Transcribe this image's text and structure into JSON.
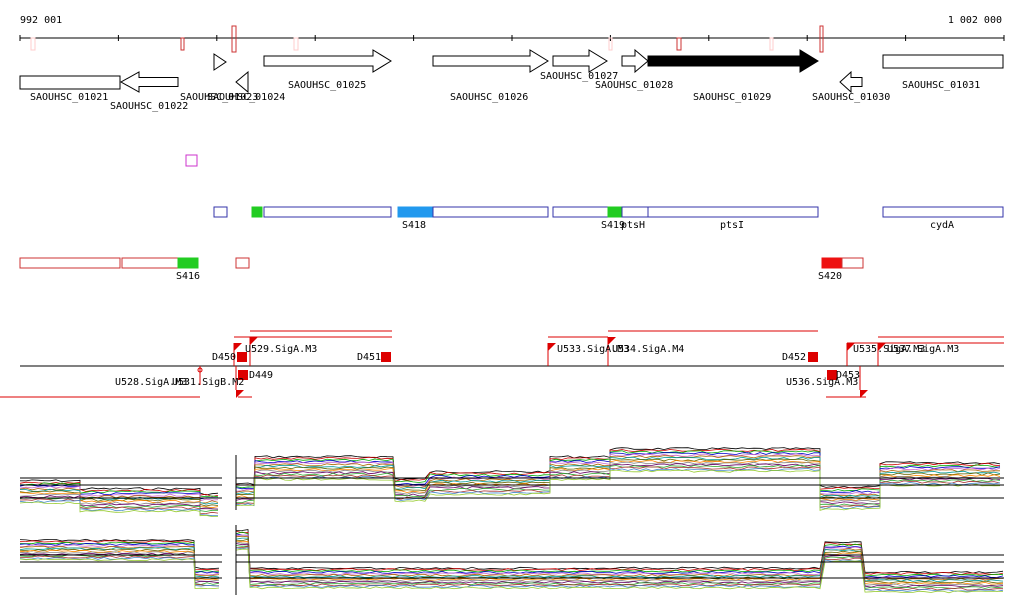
{
  "ruler": {
    "start": "992 001",
    "end": "1 002 000"
  },
  "genes": [
    "SAOUHSC_01021",
    "SAOUHSC_01022",
    "SAOUHSC_01023",
    "SAOUHSC_01024",
    "SAOUHSC_01025",
    "SAOUHSC_01026",
    "SAOUHSC_01027",
    "SAOUHSC_01028",
    "SAOUHSC_01029",
    "SAOUHSC_01030",
    "SAOUHSC_01031"
  ],
  "features": [
    "S418",
    "S419",
    "ptsH",
    "ptsI",
    "cydA",
    "S416",
    "S420"
  ],
  "promoters": [
    "D450",
    "U529.SigA.M3",
    "D451",
    "U533.SigA.M3",
    "U534.SigA.M4",
    "D452",
    "U535.SigA.M3",
    "U537.SigA.M3",
    "D449",
    "U528.SigA.M3",
    "U531.SigB.M2",
    "D453",
    "U536.SigA.M3"
  ]
}
